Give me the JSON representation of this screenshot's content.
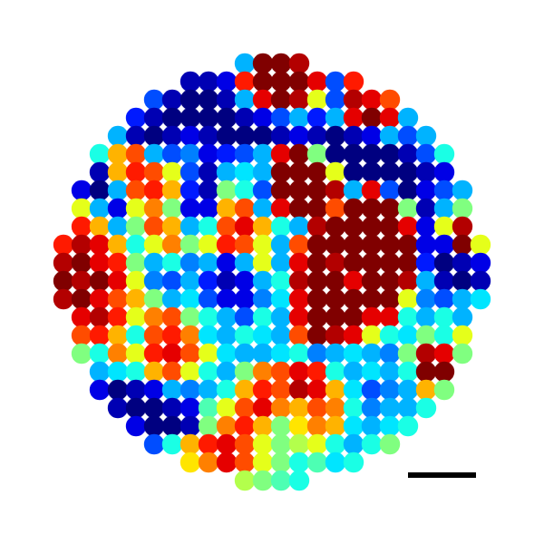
{
  "chart_data": {
    "type": "scatter",
    "tick_labels": false,
    "xlim": [
      -15,
      15
    ],
    "ylim": [
      -15,
      15
    ],
    "color_range": [
      0,
      1
    ],
    "scale_bar": 3.75,
    "x": [
      -11.5,
      -10.5,
      -9.5,
      -8.5,
      -7.5,
      -6.5,
      -5.5,
      -4.5,
      -3.5,
      -2.5,
      -1.5,
      -0.5,
      0.5,
      1.5,
      2.5,
      3.5,
      4.5,
      5.5,
      6.5,
      7.5,
      8.5,
      9.5,
      10.5,
      11.5
    ],
    "y": [
      11.5,
      10.5,
      9.5,
      8.5,
      7.5,
      6.5,
      5.5,
      4.5,
      3.5,
      2.5,
      1.5,
      0.5,
      -0.5,
      -1.5,
      -2.5,
      -3.5,
      -4.5,
      -5.5,
      -6.5,
      -7.5,
      -8.5,
      -9.5,
      -10.5,
      -11.5
    ],
    "values": [
      [
        null,
        null,
        null,
        null,
        null,
        null,
        null,
        null,
        null,
        null,
        0.3,
        1.0,
        1.0,
        0.95,
        null,
        null,
        null,
        null,
        null,
        null,
        null,
        null,
        null,
        null
      ],
      [
        null,
        null,
        null,
        null,
        null,
        null,
        null,
        0.05,
        0.05,
        0.1,
        0.85,
        1.0,
        1.0,
        1.0,
        0.9,
        0.2,
        0.85,
        null,
        null,
        null,
        null,
        null,
        null,
        null
      ],
      [
        null,
        null,
        null,
        null,
        null,
        0.2,
        0.05,
        0.0,
        0.0,
        0.05,
        0.3,
        0.9,
        1.0,
        0.95,
        0.6,
        0.2,
        0.95,
        0.9,
        0.8,
        null,
        null,
        null,
        null,
        null
      ],
      [
        null,
        null,
        null,
        null,
        0.15,
        0.05,
        0.0,
        0.0,
        0.0,
        0.0,
        0.05,
        0.1,
        0.2,
        0.3,
        0.15,
        0.3,
        0.9,
        1.0,
        0.9,
        0.3,
        null,
        null,
        null,
        null
      ],
      [
        null,
        null,
        null,
        0.3,
        0.05,
        0.0,
        0.05,
        0.1,
        0.05,
        0.0,
        0.0,
        0.0,
        0.05,
        0.1,
        0.05,
        0.0,
        0.05,
        0.1,
        0.3,
        0.2,
        0.3,
        null,
        null,
        null
      ],
      [
        null,
        null,
        0.4,
        0.7,
        0.8,
        0.3,
        0.2,
        0.25,
        0.1,
        0.15,
        0.2,
        0.3,
        0.9,
        1.0,
        0.5,
        0.0,
        0.0,
        0.0,
        0.0,
        0.05,
        0.2,
        0.4,
        null,
        null
      ],
      [
        null,
        null,
        0.05,
        0.7,
        0.85,
        0.8,
        0.6,
        0.2,
        0.05,
        0.3,
        0.35,
        0.3,
        1.0,
        1.0,
        1.0,
        0.6,
        0.0,
        0.0,
        0.0,
        0.0,
        0.05,
        0.1,
        null,
        null
      ],
      [
        null,
        0.1,
        0.0,
        0.3,
        0.8,
        0.85,
        0.7,
        0.15,
        0.05,
        0.5,
        0.4,
        0.2,
        1.0,
        1.0,
        1.0,
        0.95,
        0.3,
        0.9,
        0.2,
        0.0,
        0.1,
        0.2,
        0.3,
        null
      ],
      [
        null,
        0.6,
        0.3,
        0.1,
        0.6,
        0.75,
        0.5,
        0.1,
        0.1,
        0.7,
        0.8,
        0.3,
        0.9,
        1.0,
        1.0,
        0.8,
        1.0,
        1.0,
        1.0,
        0.5,
        0.05,
        0.3,
        0.5,
        null
      ],
      [
        null,
        0.85,
        0.7,
        0.3,
        0.5,
        0.8,
        0.7,
        0.3,
        0.4,
        0.8,
        0.9,
        0.7,
        0.4,
        0.3,
        0.95,
        1.0,
        1.0,
        1.0,
        1.0,
        0.9,
        0.1,
        0.6,
        0.95,
        null
      ],
      [
        0.85,
        0.95,
        0.9,
        0.7,
        0.4,
        0.6,
        0.75,
        0.5,
        0.6,
        0.85,
        0.8,
        0.6,
        0.3,
        0.8,
        1.0,
        1.0,
        1.0,
        1.0,
        1.0,
        1.0,
        0.1,
        0.1,
        1.0,
        0.6
      ],
      [
        0.95,
        1.0,
        0.9,
        0.85,
        0.5,
        0.3,
        0.4,
        0.25,
        0.3,
        0.1,
        0.3,
        0.6,
        0.3,
        0.9,
        1.0,
        0.95,
        1.0,
        1.0,
        1.0,
        1.0,
        0.15,
        0.0,
        0.05,
        0.1
      ],
      [
        1.0,
        0.95,
        1.0,
        0.9,
        0.6,
        0.25,
        0.2,
        0.3,
        0.15,
        0.05,
        0.1,
        0.3,
        0.4,
        0.95,
        1.0,
        1.0,
        0.9,
        1.0,
        1.0,
        0.95,
        0.3,
        0.05,
        0.0,
        0.05
      ],
      [
        0.95,
        1.0,
        0.9,
        0.8,
        0.7,
        0.5,
        0.3,
        0.35,
        0.2,
        0.1,
        0.1,
        0.25,
        0.35,
        0.9,
        1.0,
        1.0,
        1.0,
        1.0,
        1.0,
        0.6,
        0.25,
        0.2,
        0.3,
        0.35
      ],
      [
        null,
        0.9,
        0.95,
        0.85,
        0.6,
        0.75,
        0.8,
        0.5,
        0.4,
        0.3,
        0.2,
        0.4,
        0.3,
        0.9,
        1.0,
        1.0,
        1.0,
        0.9,
        0.9,
        0.4,
        0.3,
        0.4,
        0.3,
        null
      ],
      [
        null,
        0.8,
        0.85,
        0.7,
        0.4,
        0.8,
        0.85,
        0.75,
        0.35,
        0.3,
        0.4,
        0.35,
        0.3,
        0.8,
        1.0,
        0.95,
        0.9,
        0.6,
        0.4,
        0.35,
        0.5,
        0.4,
        0.6,
        null
      ],
      [
        null,
        0.5,
        0.4,
        0.75,
        0.6,
        0.85,
        0.9,
        0.8,
        0.6,
        0.35,
        0.3,
        0.3,
        0.35,
        0.4,
        0.25,
        0.3,
        0.35,
        0.3,
        0.25,
        0.5,
        0.95,
        0.9,
        0.5,
        null
      ],
      [
        null,
        null,
        0.3,
        0.35,
        0.4,
        0.7,
        0.8,
        0.6,
        0.4,
        0.3,
        0.5,
        0.75,
        0.8,
        0.9,
        0.85,
        0.4,
        0.3,
        0.35,
        0.3,
        0.4,
        1.0,
        1.0,
        null,
        null
      ],
      [
        null,
        null,
        0.1,
        0.0,
        0.05,
        0.1,
        0.3,
        0.25,
        0.3,
        0.4,
        0.7,
        0.85,
        0.8,
        0.95,
        0.9,
        0.7,
        0.35,
        0.2,
        0.25,
        0.3,
        0.7,
        0.5,
        null,
        null
      ],
      [
        null,
        null,
        null,
        0.05,
        0.0,
        0.0,
        0.05,
        0.1,
        0.45,
        0.6,
        0.8,
        0.9,
        0.75,
        0.7,
        0.8,
        0.75,
        0.4,
        0.25,
        0.3,
        0.3,
        0.4,
        null,
        null,
        null
      ],
      [
        null,
        null,
        null,
        null,
        0.1,
        0.0,
        0.0,
        0.05,
        0.5,
        0.75,
        0.85,
        0.7,
        0.5,
        0.65,
        0.75,
        0.7,
        0.35,
        0.3,
        0.35,
        0.4,
        null,
        null,
        null,
        null
      ],
      [
        null,
        null,
        null,
        null,
        null,
        0.2,
        0.4,
        0.7,
        0.85,
        0.9,
        0.8,
        0.6,
        0.5,
        0.55,
        0.6,
        0.4,
        0.3,
        0.4,
        0.5,
        null,
        null,
        null,
        null,
        null
      ],
      [
        null,
        null,
        null,
        null,
        null,
        null,
        null,
        0.65,
        0.75,
        0.9,
        0.8,
        0.6,
        0.5,
        0.4,
        0.45,
        0.35,
        0.4,
        null,
        null,
        null,
        null,
        null,
        null,
        null
      ],
      [
        null,
        null,
        null,
        null,
        null,
        null,
        null,
        null,
        null,
        null,
        0.55,
        0.5,
        0.45,
        0.4,
        null,
        null,
        null,
        null,
        null,
        null,
        null,
        null,
        null,
        null
      ]
    ]
  }
}
